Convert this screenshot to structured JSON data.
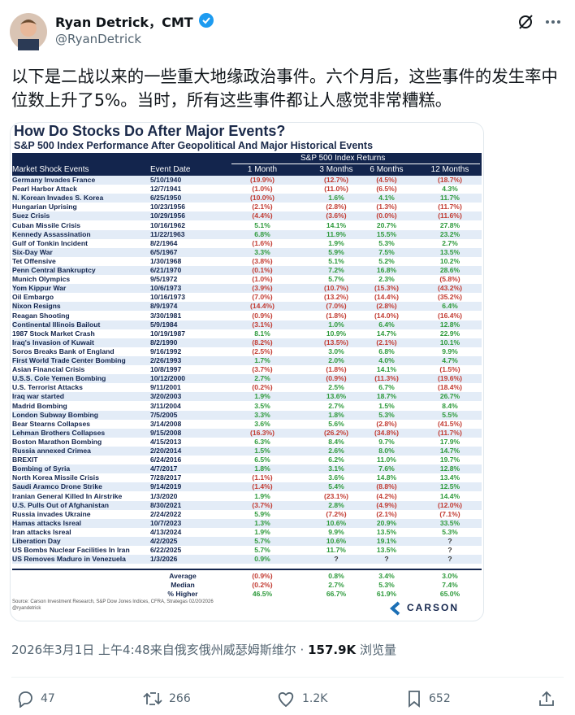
{
  "header": {
    "name": "Ryan Detrick，CMT",
    "handle": "@RyanDetrick"
  },
  "tweet_text": "以下是二战以来的一些重大地缘政治事件。六个月后，这些事件的发生率中位数上升了5%。当时，所有这些事件都让人感觉非常糟糕。",
  "image": {
    "title": "How Do Stocks Do After Major Events?",
    "subtitle": "S&P 500 Index Performance After Geopolitical And Major Historical Events",
    "group_header": "S&P 500 Index Returns",
    "columns": [
      "Market Shock Events",
      "Event Date",
      "1 Month",
      "3 Months",
      "6 Months",
      "12 Months"
    ],
    "rows": [
      [
        "Germany Invades France",
        "5/10/1940",
        "(19.9%)",
        "(12.7%)",
        "(4.5%)",
        "(18.7%)"
      ],
      [
        "Pearl Harbor Attack",
        "12/7/1941",
        "(1.0%)",
        "(11.0%)",
        "(6.5%)",
        "4.3%"
      ],
      [
        "N. Korean Invades S. Korea",
        "6/25/1950",
        "(10.0%)",
        "1.6%",
        "4.1%",
        "11.7%"
      ],
      [
        "Hungarian Uprising",
        "10/23/1956",
        "(2.1%)",
        "(2.8%)",
        "(1.3%)",
        "(11.7%)"
      ],
      [
        "Suez Crisis",
        "10/29/1956",
        "(4.4%)",
        "(3.6%)",
        "(0.0%)",
        "(11.6%)"
      ],
      [
        "Cuban Missile Crisis",
        "10/16/1962",
        "5.1%",
        "14.1%",
        "20.7%",
        "27.8%"
      ],
      [
        "Kennedy Assassination",
        "11/22/1963",
        "6.8%",
        "11.9%",
        "15.5%",
        "23.2%"
      ],
      [
        "Gulf of Tonkin Incident",
        "8/2/1964",
        "(1.6%)",
        "1.9%",
        "5.3%",
        "2.7%"
      ],
      [
        "Six-Day War",
        "6/5/1967",
        "3.3%",
        "5.9%",
        "7.5%",
        "13.5%"
      ],
      [
        "Tet Offensive",
        "1/30/1968",
        "(3.8%)",
        "5.1%",
        "5.2%",
        "10.2%"
      ],
      [
        "Penn Central Bankruptcy",
        "6/21/1970",
        "(0.1%)",
        "7.2%",
        "16.8%",
        "28.6%"
      ],
      [
        "Munich Olympics",
        "9/5/1972",
        "(1.0%)",
        "5.7%",
        "2.3%",
        "(5.8%)"
      ],
      [
        "Yom Kippur War",
        "10/6/1973",
        "(3.9%)",
        "(10.7%)",
        "(15.3%)",
        "(43.2%)"
      ],
      [
        "Oil Embargo",
        "10/16/1973",
        "(7.0%)",
        "(13.2%)",
        "(14.4%)",
        "(35.2%)"
      ],
      [
        "Nixon Resigns",
        "8/9/1974",
        "(14.4%)",
        "(7.0%)",
        "(2.8%)",
        "6.4%"
      ],
      [
        "Reagan Shooting",
        "3/30/1981",
        "(0.9%)",
        "(1.8%)",
        "(14.0%)",
        "(16.4%)"
      ],
      [
        "Continental Illinois Bailout",
        "5/9/1984",
        "(3.1%)",
        "1.0%",
        "6.4%",
        "12.8%"
      ],
      [
        "1987 Stock Market Crash",
        "10/19/1987",
        "8.1%",
        "10.9%",
        "14.7%",
        "22.9%"
      ],
      [
        "Iraq's Invasion of Kuwait",
        "8/2/1990",
        "(8.2%)",
        "(13.5%)",
        "(2.1%)",
        "10.1%"
      ],
      [
        "Soros Breaks Bank of England",
        "9/16/1992",
        "(2.5%)",
        "3.0%",
        "6.8%",
        "9.9%"
      ],
      [
        "First World Trade Center Bombing",
        "2/26/1993",
        "1.7%",
        "2.0%",
        "4.0%",
        "4.7%"
      ],
      [
        "Asian Financial Crisis",
        "10/8/1997",
        "(3.7%)",
        "(1.8%)",
        "14.1%",
        "(1.5%)"
      ],
      [
        "U.S.S. Cole Yemen Bombing",
        "10/12/2000",
        "2.7%",
        "(0.9%)",
        "(11.3%)",
        "(19.6%)"
      ],
      [
        "U.S. Terrorist Attacks",
        "9/11/2001",
        "(0.2%)",
        "2.5%",
        "6.7%",
        "(18.4%)"
      ],
      [
        "Iraq war started",
        "3/20/2003",
        "1.9%",
        "13.6%",
        "18.7%",
        "26.7%"
      ],
      [
        "Madrid Bombing",
        "3/11/2004",
        "3.5%",
        "2.7%",
        "1.5%",
        "8.4%"
      ],
      [
        "London Subway Bombing",
        "7/5/2005",
        "3.3%",
        "1.8%",
        "5.3%",
        "5.5%"
      ],
      [
        "Bear Stearns Collapses",
        "3/14/2008",
        "3.6%",
        "5.6%",
        "(2.8%)",
        "(41.5%)"
      ],
      [
        "Lehman Brothers Collapses",
        "9/15/2008",
        "(16.3%)",
        "(26.2%)",
        "(34.8%)",
        "(11.7%)"
      ],
      [
        "Boston Marathon Bombing",
        "4/15/2013",
        "6.3%",
        "8.4%",
        "9.7%",
        "17.9%"
      ],
      [
        "Russia annexed Crimea",
        "2/20/2014",
        "1.5%",
        "2.6%",
        "8.0%",
        "14.7%"
      ],
      [
        "BREXIT",
        "6/24/2016",
        "6.5%",
        "6.2%",
        "11.0%",
        "19.7%"
      ],
      [
        "Bombing of Syria",
        "4/7/2017",
        "1.8%",
        "3.1%",
        "7.6%",
        "12.8%"
      ],
      [
        "North Korea Missile Crisis",
        "7/28/2017",
        "(1.1%)",
        "3.6%",
        "14.8%",
        "13.4%"
      ],
      [
        "Saudi Aramco Drone Strike",
        "9/14/2019",
        "(1.4%)",
        "5.4%",
        "(8.8%)",
        "12.5%"
      ],
      [
        "Iranian General Killed In Airstrike",
        "1/3/2020",
        "1.9%",
        "(23.1%)",
        "(4.2%)",
        "14.4%"
      ],
      [
        "U.S. Pulls Out of Afghanistan",
        "8/30/2021",
        "(3.7%)",
        "2.8%",
        "(4.9%)",
        "(12.0%)"
      ],
      [
        "Russia invades Ukraine",
        "2/24/2022",
        "5.9%",
        "(7.2%)",
        "(2.1%)",
        "(7.1%)"
      ],
      [
        "Hamas attacks Isreal",
        "10/7/2023",
        "1.3%",
        "10.6%",
        "20.9%",
        "33.5%"
      ],
      [
        "Iran attacks Isreal",
        "4/13/2024",
        "1.9%",
        "9.9%",
        "13.5%",
        "5.3%"
      ],
      [
        "Liberation Day",
        "4/2/2025",
        "5.7%",
        "10.6%",
        "19.1%",
        "?"
      ],
      [
        "US Bombs Nuclear Facilities In Iran",
        "6/22/2025",
        "5.7%",
        "11.7%",
        "13.5%",
        "?"
      ],
      [
        "US Removes Maduro in Venezuela",
        "1/3/2026",
        "0.9%",
        "?",
        "?",
        "?"
      ]
    ],
    "summary": [
      [
        "Average",
        "(0.9%)",
        "0.8%",
        "3.4%",
        "3.0%"
      ],
      [
        "Median",
        "(0.2%)",
        "2.7%",
        "5.3%",
        "7.4%"
      ],
      [
        "% Higher",
        "46.5%",
        "66.7%",
        "61.9%",
        "65.0%"
      ]
    ],
    "source": "Source: Carson Investment Research, S&P Dow Jones Indices, CFRA, Strategas 02/20/2026",
    "source_handle": "@ryandetrick",
    "logo": "CARSON"
  },
  "meta": {
    "timestamp": "2026年3月1日 上午4:48",
    "location": "来自俄亥俄州威瑟姆斯维尔",
    "separator": "·",
    "views": "157.9K",
    "views_label": "浏览量"
  },
  "actions": {
    "replies": "47",
    "retweets": "266",
    "likes": "1.2K",
    "bookmarks": "652"
  }
}
